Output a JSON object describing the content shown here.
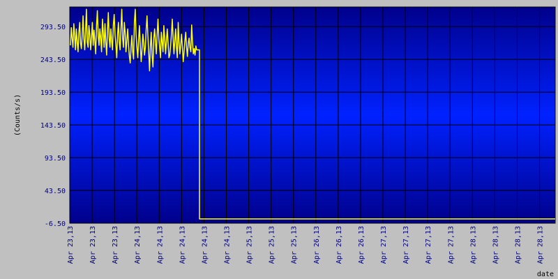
{
  "chart_data": {
    "type": "line",
    "title": "",
    "xlabel": "date",
    "ylabel": "(Counts/s)",
    "ylim": [
      -6.5,
      323.5
    ],
    "y_ticks": [
      -6.5,
      43.5,
      93.5,
      143.5,
      193.5,
      243.5,
      293.5
    ],
    "y_tick_labels": [
      "-6.50",
      "43.50",
      "93.50",
      "143.50",
      "193.50",
      "243.50",
      "293.50"
    ],
    "x_tick_labels": [
      "Apr 23,13",
      "Apr 23,13",
      "Apr 23,13",
      "Apr 24,13",
      "Apr 24,13",
      "Apr 24,13",
      "Apr 24,13",
      "Apr 24,13",
      "Apr 25,13",
      "Apr 25,13",
      "Apr 25,13",
      "Apr 26,13",
      "Apr 26,13",
      "Apr 26,13",
      "Apr 27,13",
      "Apr 27,13",
      "Apr 27,13",
      "Apr 27,13",
      "Apr 28,13",
      "Apr 28,13",
      "Apr 28,13",
      "Apr 28,13"
    ],
    "grid": true,
    "colors": {
      "background": "#c0c0c0",
      "plot_gradient_edge": "#00008b",
      "plot_gradient_center": "#0022ff",
      "grid": "#000000",
      "series": "#ffff00",
      "tick_text": "#000080"
    },
    "series": [
      {
        "values": [
          265,
          292,
          275,
          262,
          298,
          280,
          258,
          290,
          270,
          255,
          285,
          300,
          268,
          260,
          282,
          310,
          275,
          258,
          288,
          320,
          270,
          262,
          295,
          280,
          258,
          276,
          300,
          265,
          288,
          272,
          252,
          295,
          318,
          280,
          265,
          290,
          276,
          255,
          305,
          284,
          262,
          298,
          270,
          250,
          288,
          315,
          276,
          262,
          290,
          272,
          258,
          296,
          312,
          280,
          265,
          246,
          282,
          300,
          270,
          258,
          290,
          320,
          276,
          262,
          300,
          285,
          255,
          272,
          290,
          265,
          248,
          238,
          262,
          280,
          255,
          244,
          300,
          320,
          282,
          262,
          246,
          272,
          295,
          265,
          240,
          258,
          282,
          270,
          250,
          262,
          290,
          310,
          280,
          255,
          226,
          262,
          285,
          250,
          232,
          276,
          290,
          270,
          252,
          282,
          305,
          276,
          262,
          246,
          285,
          270,
          255,
          295,
          276,
          252,
          272,
          290,
          268,
          246,
          250,
          265,
          282,
          305,
          276,
          252,
          272,
          290,
          262,
          246,
          300,
          270,
          252,
          265,
          282,
          262,
          240,
          255,
          272,
          285,
          262,
          248,
          268,
          276,
          262,
          255,
          296,
          270,
          252,
          260,
          250,
          264,
          258,
          132,
          0,
          0,
          0,
          0,
          0,
          0,
          0,
          0,
          0,
          0,
          0,
          0,
          0,
          0,
          0,
          0,
          0,
          0,
          0,
          0,
          0,
          0,
          0,
          0,
          0,
          0
        ]
      }
    ]
  }
}
